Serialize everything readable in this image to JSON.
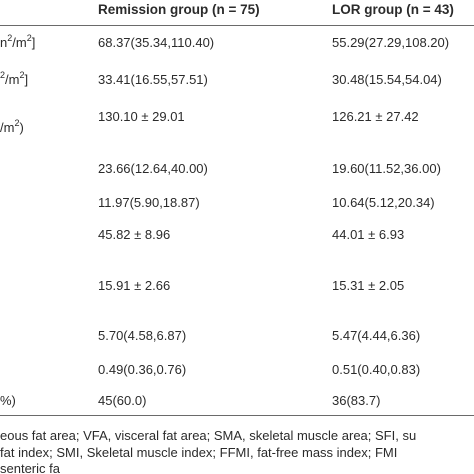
{
  "header": {
    "remission": "Remission group (n = 75)",
    "lor": "LOR group (n = 43)"
  },
  "rows": [
    {
      "label_pre": "n",
      "label_sup1": "2",
      "label_mid": "/m",
      "label_sup2": "2",
      "label_post": "]",
      "remission": "68.37(35.34,110.40)",
      "lor": "55.29(27.29,108.20)"
    },
    {
      "label_pre": "",
      "label_sup1": "2",
      "label_mid": "/m",
      "label_sup2": "2",
      "label_post": "]",
      "remission": "33.41(16.55,57.51)",
      "lor": "30.48(15.54,54.04)"
    },
    {
      "label_pre": "/m",
      "label_sup1": "2",
      "label_mid": ")",
      "label_sup2": "",
      "label_post": "",
      "remission": "130.10 ± 29.01",
      "lor": "126.21 ± 27.42"
    },
    {
      "label_pre": "",
      "label_sup1": "",
      "label_mid": "",
      "label_sup2": "",
      "label_post": "",
      "remission": "23.66(12.64,40.00)",
      "lor": "19.60(11.52,36.00)"
    },
    {
      "label_pre": "",
      "label_sup1": "",
      "label_mid": "",
      "label_sup2": "",
      "label_post": "",
      "remission": "11.97(5.90,18.87)",
      "lor": "10.64(5.12,20.34)"
    },
    {
      "label_pre": "",
      "label_sup1": "",
      "label_mid": "",
      "label_sup2": "",
      "label_post": "",
      "remission": "45.82 ± 8.96",
      "lor": "44.01 ± 6.93"
    },
    {
      "label_pre": "",
      "label_sup1": "",
      "label_mid": "",
      "label_sup2": "",
      "label_post": "",
      "remission": "15.91 ± 2.66",
      "lor": "15.31 ± 2.05"
    },
    {
      "label_pre": "",
      "label_sup1": "",
      "label_mid": "",
      "label_sup2": "",
      "label_post": "",
      "remission": "5.70(4.58,6.87)",
      "lor": "5.47(4.44,6.36)"
    },
    {
      "label_pre": "",
      "label_sup1": "",
      "label_mid": "",
      "label_sup2": "",
      "label_post": "",
      "remission": "0.49(0.36,0.76)",
      "lor": "0.51(0.40,0.83)"
    },
    {
      "label_pre": "%)",
      "label_sup1": "",
      "label_mid": "",
      "label_sup2": "",
      "label_post": "",
      "remission": "45(60.0)",
      "lor": "36(83.7)"
    }
  ],
  "footnote": {
    "line1": "eous fat area; VFA, visceral fat area; SMA, skeletal muscle area; SFI, su",
    "line2": "fat index; SMI, Skeletal muscle index; FFMI, fat-free mass index; FMI",
    "line3": "senteric fa"
  }
}
